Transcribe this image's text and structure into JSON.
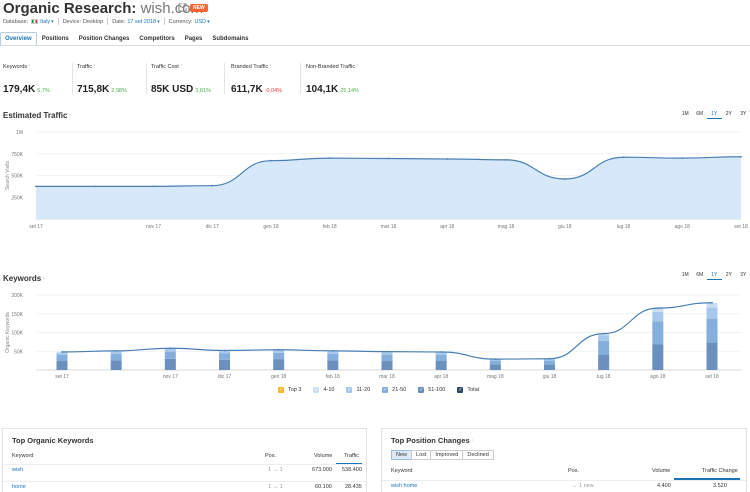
{
  "header": {
    "title": "Organic Research:",
    "domain": "wish.com",
    "badge": "NEW",
    "database_label": "Database:",
    "database_value": "Italy",
    "device_label": "Device:",
    "device_value": "Desktop",
    "date_label": "Date:",
    "date_value": "17 set 2018",
    "currency_label": "Currency:",
    "currency_value": "USD"
  },
  "tabs": [
    "Overview",
    "Positions",
    "Position Changes",
    "Competitors",
    "Pages",
    "Subdomains"
  ],
  "metrics": [
    {
      "label": "Keywords",
      "value": "179,4K",
      "change": "5,7%",
      "trend": "up"
    },
    {
      "label": "Traffic",
      "value": "715,8K",
      "change": "2,98%",
      "trend": "up"
    },
    {
      "label": "Traffic Cost",
      "value": "85K USD",
      "change": "3,81%",
      "trend": "up"
    },
    {
      "label": "Branded Traffic",
      "value": "611,7K",
      "change": "-0,04%",
      "trend": "down"
    },
    {
      "label": "Non-Branded Traffic",
      "value": "104,1K",
      "change": "25,14%",
      "trend": "up"
    }
  ],
  "colors": {
    "accent": "#1a73b9",
    "line": "#4a7fb5",
    "area": "#d6e8f9",
    "up": "#4caf50",
    "down": "#e53935",
    "top3": "#f7b731",
    "pos4_10": "#c9def3",
    "pos11_20": "#a7c8ec",
    "pos21_50": "#85aedc",
    "pos51_100": "#6b90bd"
  },
  "time_ranges": [
    "1M",
    "6M",
    "1Y",
    "2Y",
    "3Y"
  ],
  "time_range_selected": "1Y",
  "chart_data": [
    {
      "type": "area",
      "title": "Estimated Traffic",
      "ylabel": "Search Visits",
      "categories": [
        "set 17",
        "ott 17",
        "nov 17",
        "dic 17",
        "gen 18",
        "feb 18",
        "mar 18",
        "apr 18",
        "mag 18",
        "giu 18",
        "lug 18",
        "ago 18",
        "set 18"
      ],
      "values": [
        375000,
        375000,
        375000,
        383000,
        670000,
        700000,
        695000,
        690000,
        680000,
        460000,
        710000,
        700000,
        715800
      ],
      "ylim": [
        0,
        1000000
      ],
      "yticks": [
        250000,
        500000,
        750000,
        1000000
      ],
      "ytick_labels": [
        "250K",
        "500K",
        "750K",
        "1M"
      ],
      "xtick_labels": [
        "set 17",
        "nov 17",
        "dic 17",
        "gen 18",
        "feb 18",
        "mar 18",
        "apr 18",
        "mag 18",
        "giu 18",
        "lug 18",
        "ago 18",
        "set 18"
      ],
      "grid": true
    },
    {
      "type": "bar",
      "title": "Keywords",
      "ylabel": "Organic Keywords",
      "categories": [
        "set 17",
        "ott 17",
        "nov 17",
        "dic 17",
        "gen 18",
        "feb 18",
        "mar 18",
        "apr 18",
        "mag 18",
        "giu 18",
        "lug 18",
        "ago 18",
        "set 18"
      ],
      "stacked": true,
      "series": [
        {
          "name": "Top 3",
          "values": [
            0,
            0,
            0,
            0,
            0,
            0,
            0,
            0,
            0,
            0,
            0,
            0,
            0
          ]
        },
        {
          "name": "4-10",
          "values": [
            2000,
            2000,
            2000,
            2000,
            2000,
            2000,
            2000,
            2000,
            1000,
            1000,
            4000,
            10000,
            12000
          ]
        },
        {
          "name": "11-20",
          "values": [
            6000,
            6000,
            7000,
            6000,
            6000,
            6000,
            6000,
            6000,
            4000,
            4000,
            15000,
            25000,
            30000
          ]
        },
        {
          "name": "21-50",
          "values": [
            16000,
            17000,
            19000,
            17000,
            18000,
            17000,
            16000,
            16000,
            9000,
            10000,
            38000,
            62000,
            63000
          ]
        },
        {
          "name": "51-100",
          "values": [
            24000,
            26000,
            30000,
            27000,
            28000,
            26000,
            25000,
            24000,
            15000,
            15000,
            40000,
            68000,
            74000
          ]
        }
      ],
      "total": {
        "name": "Total",
        "values": [
          48000,
          51000,
          58000,
          52000,
          54000,
          51000,
          49000,
          48000,
          29000,
          30000,
          97000,
          165000,
          179400
        ]
      },
      "ylim": [
        0,
        200000
      ],
      "yticks": [
        50000,
        100000,
        150000,
        200000
      ],
      "ytick_labels": [
        "50K",
        "100K",
        "150K",
        "200K"
      ],
      "xtick_labels": [
        "set 17",
        "nov 17",
        "dic 17",
        "gen 18",
        "feb 18",
        "mar 18",
        "apr 18",
        "mag 18",
        "giu 18",
        "lug 18",
        "ago 18",
        "set 18"
      ],
      "grid": true
    }
  ],
  "legend": [
    "Top 3",
    "4-10",
    "11-20",
    "21-50",
    "51-100",
    "Total"
  ],
  "top_keywords": {
    "title": "Top Organic Keywords",
    "columns": [
      "Keyword",
      "Pos.",
      "Volume",
      "Traffic"
    ],
    "rows": [
      {
        "keyword": "wish",
        "pos": "1 → 1",
        "volume": "673.000",
        "traffic": "538.400"
      },
      {
        "keyword": "home",
        "pos": "1 → 1",
        "volume": "60.100",
        "traffic": "28.435"
      }
    ]
  },
  "position_changes": {
    "title": "Top Position Changes",
    "subtabs": [
      "New",
      "Lost",
      "Improved",
      "Declined"
    ],
    "columns": [
      "Keyword",
      "Pos.",
      "Volume",
      "Traffic Change"
    ],
    "rows": [
      {
        "keyword": "wish home",
        "pos": "→ 1 new",
        "volume": "4.400",
        "traffic": "3.520"
      }
    ]
  }
}
